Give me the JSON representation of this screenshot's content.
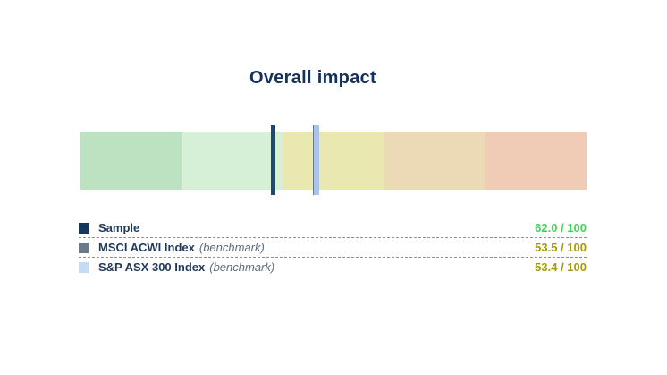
{
  "title": "Overall impact",
  "chart_data": {
    "type": "bullet",
    "title": "Overall impact",
    "scale": {
      "min": 0,
      "max": 100,
      "note": "reversed: higher scores plot toward the green (left) end; left offset % = 100 - value",
      "grid": false
    },
    "segments": [
      {
        "value_range": [
          80,
          100
        ],
        "color": "#bce2c2"
      },
      {
        "value_range": [
          60,
          80
        ],
        "color": "#d6efd7"
      },
      {
        "value_range": [
          40,
          60
        ],
        "color": "#e9e8b1"
      },
      {
        "value_range": [
          20,
          40
        ],
        "color": "#ecdab6"
      },
      {
        "value_range": [
          0,
          20
        ],
        "color": "#f0ccb6"
      }
    ],
    "markers": [
      {
        "name": "Sample",
        "value": 62.0,
        "color": "#1e4878",
        "z": 3
      },
      {
        "name": "MSCI ACWI Index",
        "value": 53.5,
        "color": "#6b7a89",
        "z": 1
      },
      {
        "name": "S&P ASX 300 Index",
        "value": 53.4,
        "color": "#a9c4e8",
        "z": 2
      }
    ],
    "rows": [
      {
        "label": "Sample",
        "benchmark_note": "",
        "value": 62.0,
        "value_display": "62.0 / 100",
        "swatch_color": "#17375d",
        "value_color": "#41d35c"
      },
      {
        "label": "MSCI ACWI Index",
        "benchmark_note": "(benchmark)",
        "value": 53.5,
        "value_display": "53.5 / 100",
        "swatch_color": "#6b7a89",
        "value_color": "#a49b0a"
      },
      {
        "label": "S&P ASX 300 Index",
        "benchmark_note": "(benchmark)",
        "value": 53.4,
        "value_display": "53.4 / 100",
        "swatch_color": "#c6dbf4",
        "value_color": "#a49b0a"
      }
    ]
  }
}
